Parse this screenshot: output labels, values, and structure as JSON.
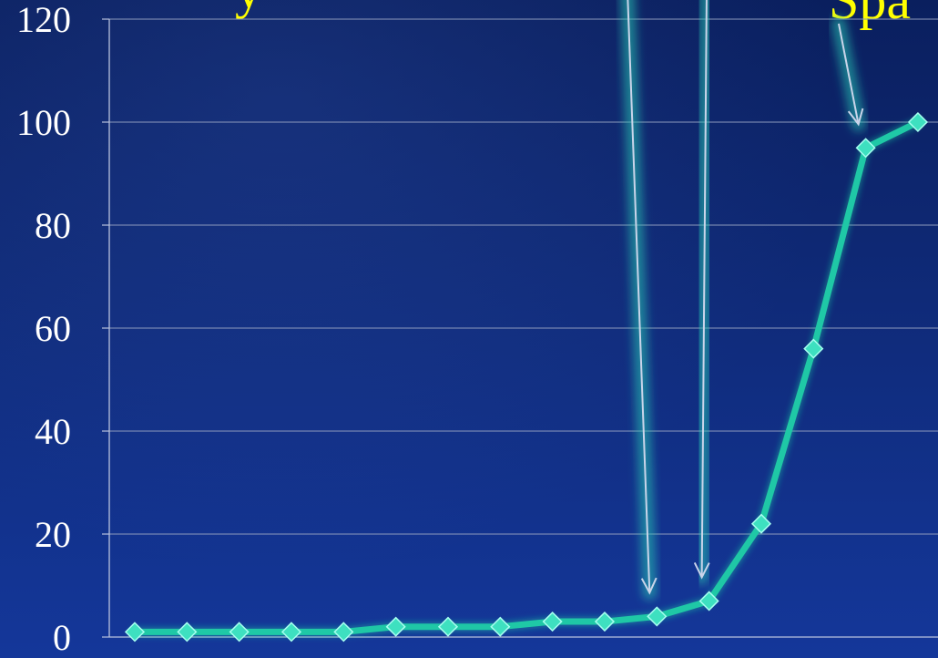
{
  "title_fragments": {
    "left": "y",
    "right": "Spa"
  },
  "chart_data": {
    "type": "line",
    "title": "",
    "xlabel": "",
    "ylabel": "",
    "ylim": [
      0,
      120
    ],
    "yticks": [
      "0",
      "20",
      "40",
      "60",
      "80",
      "100",
      "120"
    ],
    "grid": true,
    "legend": "none",
    "series": [
      {
        "x": [
          1,
          2,
          3,
          4,
          5,
          6,
          7,
          8,
          9,
          10,
          11,
          12,
          13,
          14,
          15,
          16
        ],
        "values": [
          1,
          1,
          1,
          1,
          1,
          2,
          2,
          2,
          3,
          3,
          4,
          7,
          22,
          56,
          95,
          100
        ]
      }
    ],
    "annotations": [
      {
        "type": "arrow",
        "points_to_index": 10
      },
      {
        "type": "arrow",
        "points_to_index": 11
      },
      {
        "type": "arrow",
        "points_to_index": 14
      }
    ]
  },
  "colors": {
    "line": "#1fc8a6",
    "marker": "#3ee0c0",
    "marker_edge": "#a8fff0",
    "grid": "#8f9bbd",
    "axis": "#b9c2dd",
    "tick_text": "#ffffff",
    "title_text": "#ffff00",
    "arrow": "#c9d4ea",
    "arrow_glow": "#2ac9b3"
  }
}
